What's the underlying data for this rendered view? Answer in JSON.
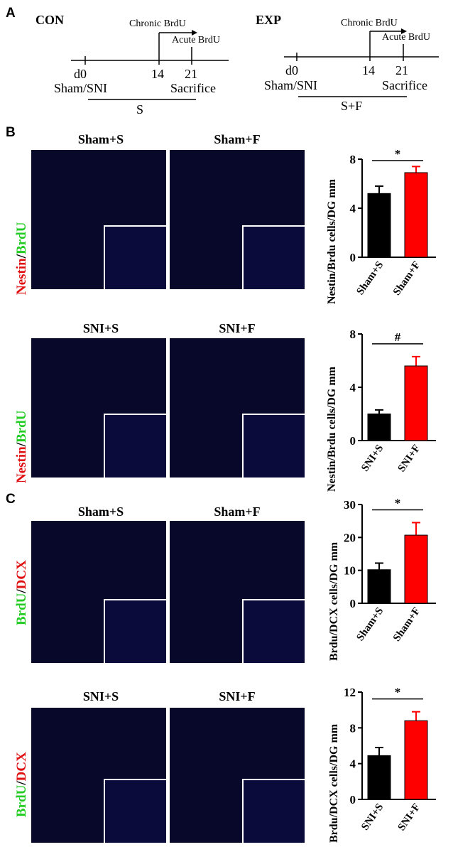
{
  "panels": {
    "a": "A",
    "b": "B",
    "c": "C"
  },
  "timeline_con": {
    "title": "CON",
    "chronic": "Chronic BrdU",
    "acute": "Acute BrdU",
    "d0": "d0",
    "d14": "14",
    "d21": "21",
    "left": "Sham/SNI",
    "right": "Sacrifice",
    "treatment": "S"
  },
  "timeline_exp": {
    "title": "EXP",
    "chronic": "Chronic BrdU",
    "acute": "Acute BrdU",
    "d0": "d0",
    "d14": "14",
    "d21": "21",
    "left": "Sham/SNI",
    "right": "Sacrifice",
    "treatment": "S+F"
  },
  "label_b": {
    "part1": "Nestin",
    "sep": "/",
    "part2": "BrdU"
  },
  "label_c": {
    "part1": "BrdU",
    "sep": "/",
    "part2": "DCX"
  },
  "image_titles": {
    "b1_left": "Sham+S",
    "b1_right": "Sham+F",
    "b2_left": "SNI+S",
    "b2_right": "SNI+F",
    "c1_left": "Sham+S",
    "c1_right": "Sham+F",
    "c2_left": "SNI+S",
    "c2_right": "SNI+F"
  },
  "colors": {
    "control": "#000000",
    "treated": "#ff0000",
    "nuclei": "#1b2fd6",
    "marker_red": "#e01010",
    "marker_green": "#22cc22"
  },
  "chart_data": [
    {
      "type": "bar",
      "categories": [
        "Sham+S",
        "Sham+F"
      ],
      "values": [
        5.2,
        6.9
      ],
      "errors": [
        0.6,
        0.5
      ],
      "ylabel": "Nestin/Brdu cells/DG mm",
      "ylim": [
        0,
        8
      ],
      "yticks": [
        0,
        4,
        8
      ],
      "significance": "*"
    },
    {
      "type": "bar",
      "categories": [
        "SNI+S",
        "SNI+F"
      ],
      "values": [
        2.0,
        5.6
      ],
      "errors": [
        0.3,
        0.7
      ],
      "ylabel": "Nestin/Brdu cells/DG mm",
      "ylim": [
        0,
        8
      ],
      "yticks": [
        0,
        4,
        8
      ],
      "significance": "#"
    },
    {
      "type": "bar",
      "categories": [
        "Sham+S",
        "Sham+F"
      ],
      "values": [
        10.2,
        20.7
      ],
      "errors": [
        2.0,
        3.8
      ],
      "ylabel": "Brdu/DCX cells/DG mm",
      "ylim": [
        0,
        30
      ],
      "yticks": [
        0,
        10,
        20,
        30
      ],
      "significance": "*"
    },
    {
      "type": "bar",
      "categories": [
        "SNI+S",
        "SNI+F"
      ],
      "values": [
        4.9,
        8.8
      ],
      "errors": [
        0.9,
        1.0
      ],
      "ylabel": "Brdu/DCX cells/DG mm",
      "ylim": [
        0,
        12
      ],
      "yticks": [
        0,
        4,
        8,
        12
      ],
      "significance": "*"
    }
  ]
}
